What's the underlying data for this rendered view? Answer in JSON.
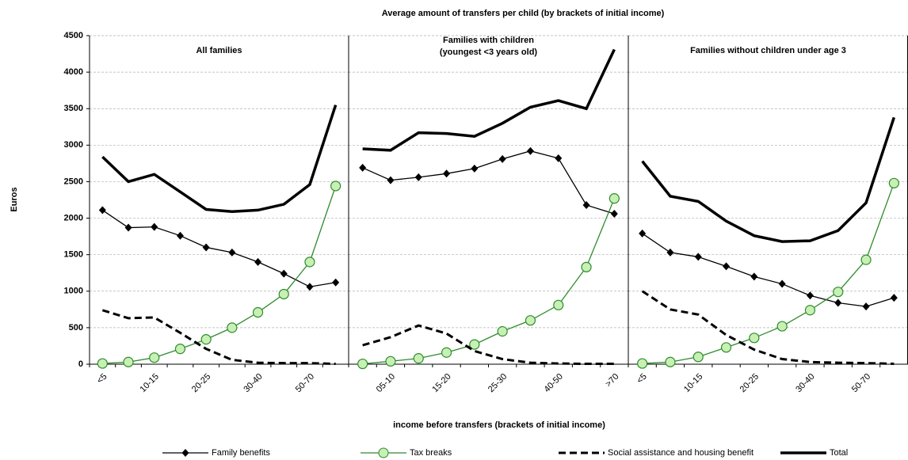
{
  "chart_data": [
    {
      "type": "line",
      "title": "Average amount of transfers per child (by brackets of initial income)",
      "ylabel": "Euros",
      "xlabel": "income before transfers  (brackets  of initial income)",
      "subtitle": "All families",
      "categories": [
        "<5",
        null,
        "10-15",
        null,
        "20-25",
        null,
        "30-40",
        null,
        "50-70",
        null
      ],
      "ylim": [
        0,
        4500
      ],
      "yticks": [
        0,
        500,
        1000,
        1500,
        2000,
        2500,
        3000,
        3500,
        4000,
        4500
      ],
      "grid": true,
      "series": [
        {
          "name": "Family benefits",
          "color": "#000000",
          "marker": "diamond",
          "values": [
            2110,
            1870,
            1880,
            1760,
            1600,
            1530,
            1400,
            1240,
            1060,
            1120
          ]
        },
        {
          "name": "Tax breaks",
          "color": "#2e8b2e",
          "marker": "circle",
          "values": [
            10,
            30,
            90,
            210,
            340,
            500,
            710,
            960,
            1400,
            2440
          ]
        },
        {
          "name": "Social assistance and housing benefit",
          "color": "#000000",
          "dash": true,
          "values": [
            740,
            630,
            640,
            430,
            210,
            60,
            20,
            15,
            15,
            5
          ]
        },
        {
          "name": "Total",
          "color": "#000000",
          "thick": true,
          "values": [
            2840,
            2500,
            2600,
            2360,
            2120,
            2090,
            2110,
            2190,
            2460,
            3550
          ]
        }
      ]
    },
    {
      "type": "line",
      "subtitle": [
        "Families with children",
        "(youngest <3 years old)"
      ],
      "categories": [
        null,
        "05-10",
        null,
        "15-20",
        null,
        "25-30",
        null,
        "40-50",
        null,
        ">70"
      ],
      "ylim": [
        0,
        4500
      ],
      "series": [
        {
          "color": "#000000",
          "marker": "diamond",
          "values": [
            2690,
            2520,
            2560,
            2610,
            2680,
            2810,
            2920,
            2820,
            2180,
            2060
          ]
        },
        {
          "color": "#2e8b2e",
          "marker": "circle",
          "values": [
            5,
            40,
            80,
            160,
            270,
            450,
            600,
            810,
            1330,
            2270
          ]
        },
        {
          "color": "#000000",
          "dash": true,
          "values": [
            260,
            370,
            530,
            420,
            180,
            70,
            20,
            10,
            5,
            5
          ]
        },
        {
          "color": "#000000",
          "thick": true,
          "values": [
            2950,
            2930,
            3170,
            3160,
            3120,
            3300,
            3520,
            3610,
            3500,
            4310
          ]
        }
      ]
    },
    {
      "type": "line",
      "subtitle": "Families without children under age 3",
      "categories": [
        "<5",
        null,
        "10-15",
        null,
        "20-25",
        null,
        "30-40",
        null,
        "50-70",
        null
      ],
      "ylim": [
        0,
        4500
      ],
      "series": [
        {
          "color": "#000000",
          "marker": "diamond",
          "values": [
            1790,
            1530,
            1470,
            1340,
            1200,
            1100,
            940,
            840,
            790,
            910
          ]
        },
        {
          "color": "#2e8b2e",
          "marker": "circle",
          "values": [
            10,
            30,
            100,
            230,
            360,
            520,
            740,
            990,
            1430,
            2480
          ]
        },
        {
          "color": "#000000",
          "dash": true,
          "values": [
            1000,
            750,
            680,
            400,
            200,
            70,
            30,
            20,
            15,
            5
          ]
        },
        {
          "color": "#000000",
          "thick": true,
          "values": [
            2780,
            2300,
            2230,
            1960,
            1760,
            1680,
            1690,
            1830,
            2210,
            3380
          ]
        }
      ]
    }
  ]
}
